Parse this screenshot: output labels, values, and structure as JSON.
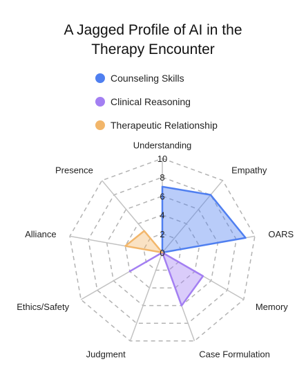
{
  "chart_data": {
    "type": "radar",
    "title_lines": [
      "A Jagged Profile of AI in the",
      "Therapy Encounter"
    ],
    "axes": [
      "Understanding",
      "Empathy",
      "OARS",
      "Memory",
      "Case Formulation",
      "Judgment",
      "Ethics/Safety",
      "Alliance",
      "Presence"
    ],
    "rlim": [
      0,
      10
    ],
    "ticks": [
      "0",
      "2",
      "4",
      "6",
      "8",
      "10"
    ],
    "grid": true,
    "legend_position": "top-center",
    "series": [
      {
        "name": "Counseling Skills",
        "color": "#4f7ff0",
        "values": [
          7,
          8,
          9,
          0,
          0,
          0,
          0,
          0,
          0
        ]
      },
      {
        "name": "Clinical Reasoning",
        "color": "#a37ff2",
        "values": [
          0,
          0,
          0,
          5,
          6,
          0,
          4,
          0,
          0
        ]
      },
      {
        "name": "Therapeutic Relationship",
        "color": "#f2b66a",
        "values": [
          0,
          0,
          0,
          0,
          0,
          0,
          0,
          4,
          3
        ]
      }
    ]
  }
}
